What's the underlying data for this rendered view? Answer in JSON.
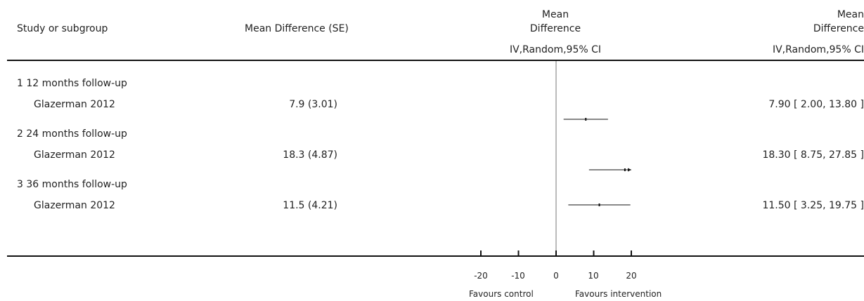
{
  "headers": {
    "study": "Study or subgroup",
    "md_se": "Mean Difference (SE)",
    "plot_title_line1": "Mean",
    "plot_title_line2": "Difference",
    "plot_method": "IV,Random,95% CI",
    "result_title_line1": "Mean",
    "result_title_line2": "Difference",
    "result_method": "IV,Random,95% CI"
  },
  "footer": {
    "favours_left": "Favours control",
    "favours_right": "Favours intervention"
  },
  "chart_data": {
    "type": "forest",
    "xlim": [
      -20,
      20
    ],
    "ticks": [
      -20,
      -10,
      0,
      10,
      20
    ],
    "tick_labels": [
      "-20",
      "-10",
      "0",
      "10",
      "20"
    ],
    "subgroups": [
      {
        "label": "1 12 months follow-up",
        "study": "Glazerman 2012",
        "md_se": "7.9 (3.01)",
        "estimate": 7.9,
        "ci_low": 2.0,
        "ci_high": 13.8,
        "result": "7.90 [ 2.00, 13.80 ]",
        "truncated_right": false
      },
      {
        "label": "2 24 months follow-up",
        "study": "Glazerman 2012",
        "md_se": "18.3 (4.87)",
        "estimate": 18.3,
        "ci_low": 8.75,
        "ci_high": 27.85,
        "result": "18.30 [ 8.75, 27.85 ]",
        "truncated_right": true
      },
      {
        "label": "3 36 months follow-up",
        "study": "Glazerman 2012",
        "md_se": "11.5 (4.21)",
        "estimate": 11.5,
        "ci_low": 3.25,
        "ci_high": 19.75,
        "result": "11.50 [ 3.25, 19.75 ]",
        "truncated_right": false
      }
    ]
  }
}
